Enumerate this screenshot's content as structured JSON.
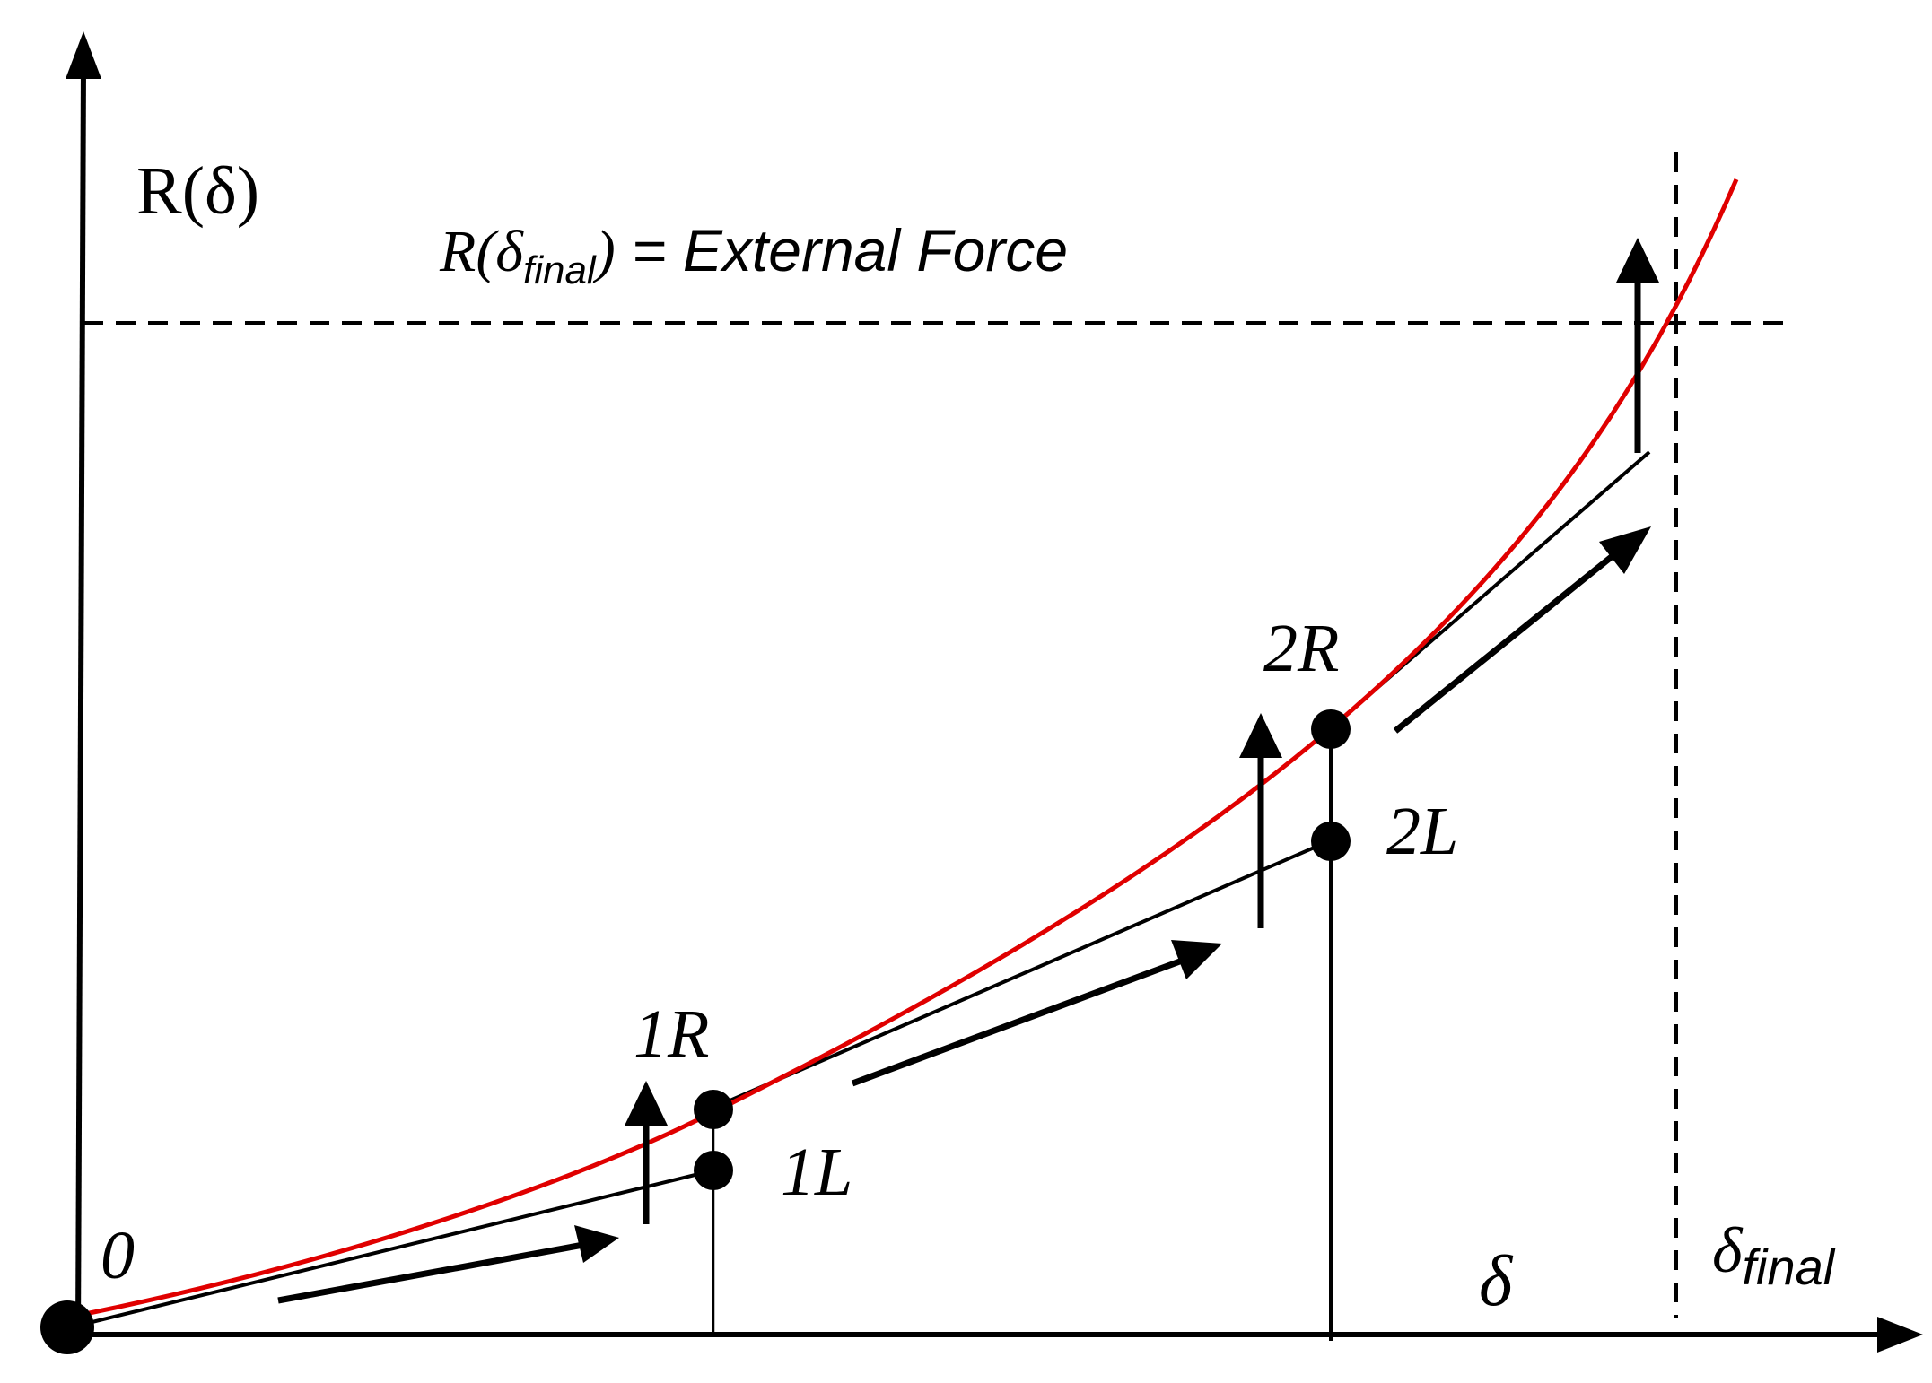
{
  "y_axis_label": "R(δ)",
  "x_axis_label": "δ",
  "final_label": {
    "delta": "δ",
    "subscript": "final"
  },
  "equilibrium_label": {
    "prefix": "R(δ",
    "subscript": "final",
    "suffix": ")",
    "eq": " = External Force"
  },
  "points": {
    "origin": "0",
    "p1R": "1R",
    "p1L": "1L",
    "p2R": "2R",
    "p2L": "2L"
  },
  "colors": {
    "curve": "#e00000",
    "ink": "#000000"
  }
}
